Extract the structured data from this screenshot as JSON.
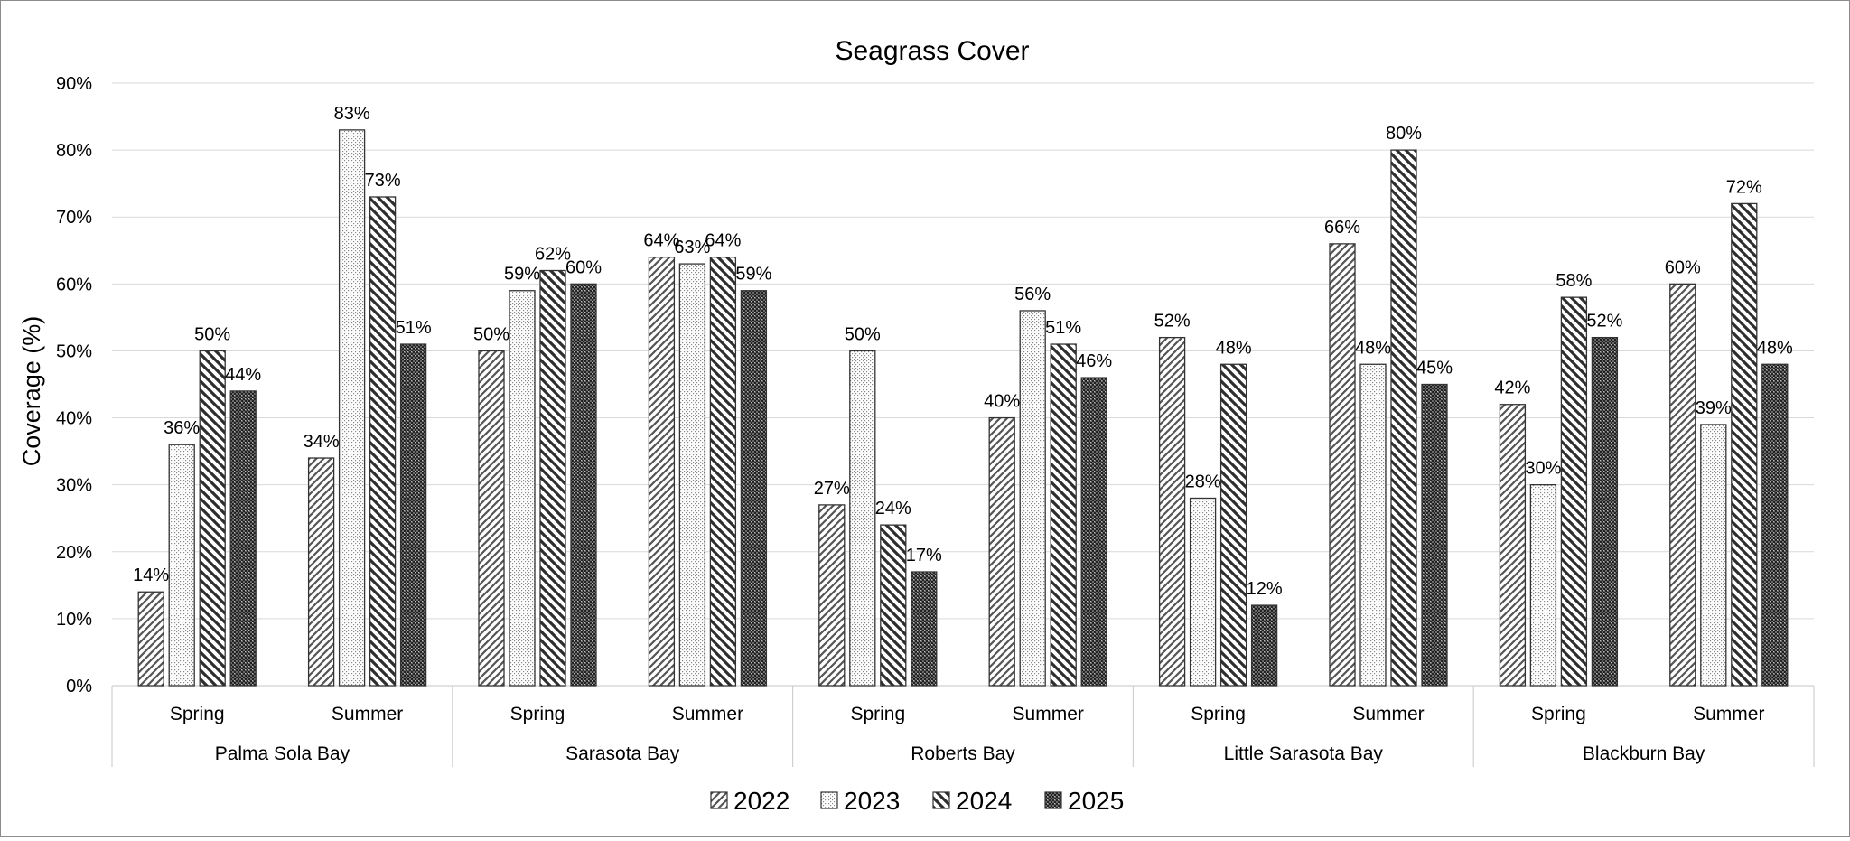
{
  "chart_data": {
    "type": "bar",
    "title": "Seagrass Cover",
    "ylabel": "Coverage (%)",
    "xlabel": "",
    "ylim": [
      0,
      90
    ],
    "yticks": [
      "0%",
      "10%",
      "20%",
      "30%",
      "40%",
      "50%",
      "60%",
      "70%",
      "80%",
      "90%"
    ],
    "grid": true,
    "legend_position": "bottom",
    "groups": [
      {
        "site": "Palma Sola Bay",
        "seasons": [
          "Spring",
          "Summer"
        ]
      },
      {
        "site": "Sarasota Bay",
        "seasons": [
          "Spring",
          "Summer"
        ]
      },
      {
        "site": "Roberts Bay",
        "seasons": [
          "Spring",
          "Summer"
        ]
      },
      {
        "site": "Little Sarasota Bay",
        "seasons": [
          "Spring",
          "Summer"
        ]
      },
      {
        "site": "Blackburn Bay",
        "seasons": [
          "Spring",
          "Summer"
        ]
      }
    ],
    "series": [
      {
        "name": "2022",
        "pattern": "diagonal",
        "values": [
          14,
          34,
          50,
          64,
          27,
          40,
          52,
          66,
          42,
          60
        ],
        "labels": [
          "14%",
          "34%",
          "50%",
          "64%",
          "27%",
          "40%",
          "52%",
          "66%",
          "42%",
          "60%"
        ]
      },
      {
        "name": "2023",
        "pattern": "dotted",
        "values": [
          36,
          83,
          59,
          63,
          50,
          56,
          28,
          48,
          30,
          39
        ],
        "labels": [
          "36%",
          "83%",
          "59%",
          "63%",
          "50%",
          "56%",
          "28%",
          "48%",
          "30%",
          "39%"
        ]
      },
      {
        "name": "2024",
        "pattern": "wide-diagonal",
        "values": [
          50,
          73,
          62,
          64,
          24,
          51,
          48,
          80,
          58,
          72
        ],
        "labels": [
          "50%",
          "73%",
          "62%",
          "64%",
          "24%",
          "51%",
          "48%",
          "80%",
          "58%",
          "72%"
        ]
      },
      {
        "name": "2025",
        "pattern": "dense-dots",
        "values": [
          44,
          51,
          60,
          59,
          17,
          46,
          12,
          45,
          52,
          48
        ],
        "labels": [
          "44%",
          "51%",
          "60%",
          "59%",
          "17%",
          "46%",
          "12%",
          "45%",
          "52%",
          "48%"
        ]
      }
    ]
  }
}
